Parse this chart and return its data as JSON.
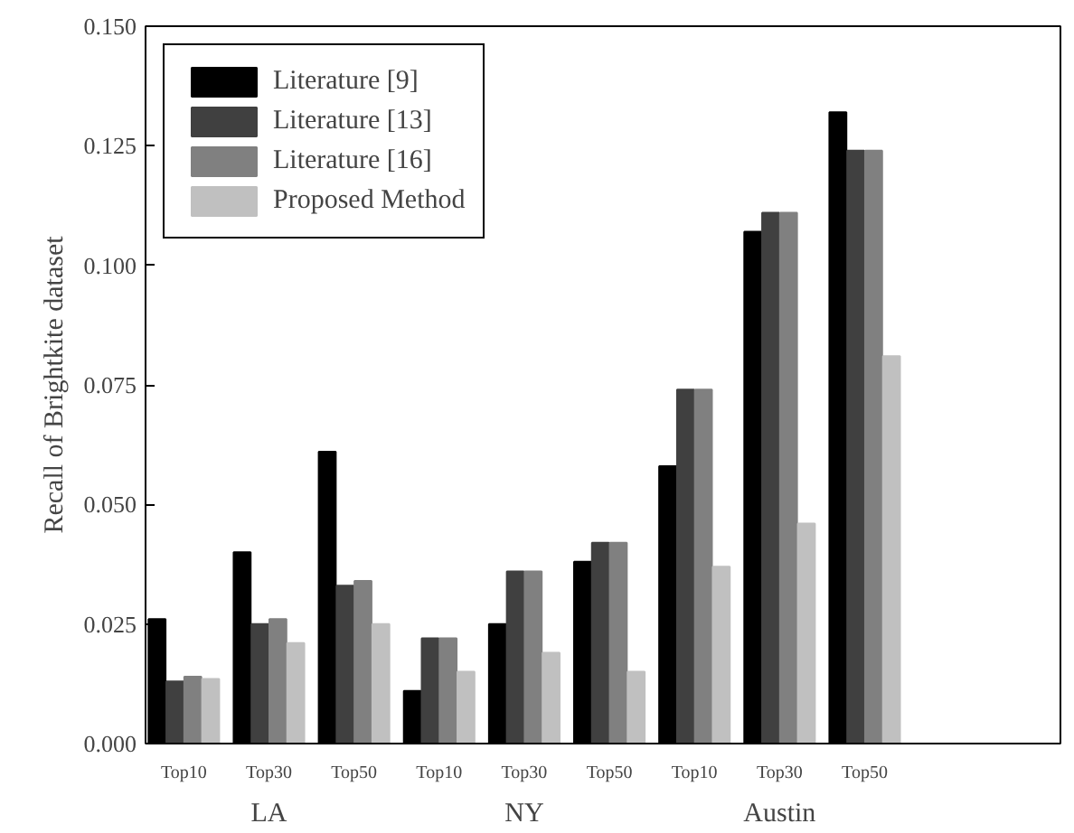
{
  "chart_data": {
    "type": "bar",
    "ylabel": "Recall of Brightkite dataset",
    "categories": [
      "Top10",
      "Top30",
      "Top50",
      "Top10",
      "Top30",
      "Top50",
      "Top10",
      "Top30",
      "Top50"
    ],
    "series": [
      {
        "name": "Literature [9]",
        "color": "#000000",
        "values": [
          0.026,
          0.04,
          0.061,
          0.011,
          0.025,
          0.038,
          0.058,
          0.107,
          0.132
        ]
      },
      {
        "name": "Literature [13]",
        "color": "#404040",
        "values": [
          0.013,
          0.025,
          0.033,
          0.022,
          0.036,
          0.042,
          0.074,
          0.111,
          0.124
        ]
      },
      {
        "name": "Literature [16]",
        "color": "#808080",
        "values": [
          0.014,
          0.026,
          0.034,
          0.022,
          0.036,
          0.042,
          0.074,
          0.111,
          0.124
        ]
      },
      {
        "name": "Proposed Method",
        "color": "#c0c0c0",
        "values": [
          0.0135,
          0.021,
          0.025,
          0.015,
          0.019,
          0.015,
          0.037,
          0.046,
          0.081
        ]
      }
    ],
    "annotations": [
      "LA",
      "NY",
      "Austin"
    ],
    "ylim": [
      0,
      0.15
    ],
    "yticks": [
      {
        "value": 0,
        "label": "0.000"
      },
      {
        "value": 0.025,
        "label": "0.025"
      },
      {
        "value": 0.05,
        "label": "0.050"
      },
      {
        "value": 0.075,
        "label": "0.075"
      },
      {
        "value": 0.1,
        "label": "0.100"
      },
      {
        "value": 0.125,
        "label": "0.125"
      },
      {
        "value": 0.15,
        "label": "0.150"
      }
    ],
    "grid": false,
    "legend": "top left"
  }
}
